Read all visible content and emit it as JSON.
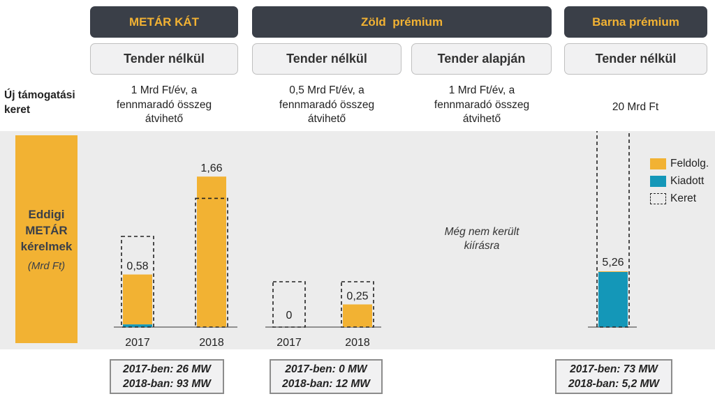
{
  "headers": {
    "metar_kat": "METÁR KÁT",
    "zold_premium": "Zöld  prémium",
    "barna_premium": "Barna prémium"
  },
  "subheaders": {
    "metar_kat": "Tender nélkül",
    "zold_tender_nelkul": "Tender nélkül",
    "zold_tender_alapjan": "Tender alapján",
    "barna": "Tender nélkül"
  },
  "budget_row": {
    "label_line1": "Új támogatási",
    "label_line2": "keret",
    "metar_kat": [
      "1 Mrd Ft/év, a",
      "fennmaradó összeg",
      "átvihető"
    ],
    "zold_tender_nelkul": [
      "0,5 Mrd Ft/év, a",
      "fennmaradó összeg",
      "átvihető"
    ],
    "zold_tender_alapjan": [
      "1 Mrd Ft/év, a",
      "fennmaradó összeg",
      "átvihető"
    ],
    "barna": "20 Mrd Ft"
  },
  "sidebar": {
    "title_lines": [
      "Eddigi",
      "METÁR",
      "kérelmek"
    ],
    "unit": "(Mrd Ft)"
  },
  "note_not_yet": [
    "Még nem került",
    "kiírásra"
  ],
  "legend": {
    "processing": "Feldolg.",
    "issued": "Kiadott",
    "budget": "Keret"
  },
  "colors": {
    "processing": "#f2b233",
    "issued": "#1497b8",
    "header_bg": "#3a3f48",
    "header_text": "#f2b233"
  },
  "chart_data": {
    "type": "bar",
    "stacked": true,
    "unit": "Mrd Ft",
    "groups": [
      {
        "group": "METÁR KÁT – Tender nélkül",
        "categories": [
          "2017",
          "2018"
        ],
        "series": [
          {
            "name": "Kiadott",
            "values": [
              0.03,
              0.0
            ]
          },
          {
            "name": "Feldolg.",
            "values": [
              0.55,
              1.66
            ]
          },
          {
            "name": "Keret",
            "values": [
              1.0,
              1.42
            ]
          }
        ],
        "labels": [
          "0,58",
          "1,66"
        ]
      },
      {
        "group": "Zöld prémium – Tender nélkül",
        "categories": [
          "2017",
          "2018"
        ],
        "series": [
          {
            "name": "Kiadott",
            "values": [
              0.0,
              0.0
            ]
          },
          {
            "name": "Feldolg.",
            "values": [
              0.0,
              0.25
            ]
          },
          {
            "name": "Keret",
            "values": [
              0.5,
              0.5
            ]
          }
        ],
        "labels": [
          "0",
          "0,25"
        ]
      },
      {
        "group": "Barna prémium – Tender nélkül",
        "categories": [
          ""
        ],
        "series": [
          {
            "name": "Kiadott",
            "values": [
              5.2
            ]
          },
          {
            "name": "Feldolg.",
            "values": [
              0.06
            ]
          },
          {
            "name": "Keret",
            "values": [
              20
            ]
          }
        ],
        "labels": [
          "5,26"
        ]
      }
    ]
  },
  "mw_boxes": {
    "metar_kat": [
      "2017-ben: 26 MW",
      "2018-ban: 93 MW"
    ],
    "zold": [
      "2017-ben: 0 MW",
      "2018-ban: 12 MW"
    ],
    "barna": [
      "2017-ben: 73 MW",
      "2018-ban: 5,2 MW"
    ]
  }
}
